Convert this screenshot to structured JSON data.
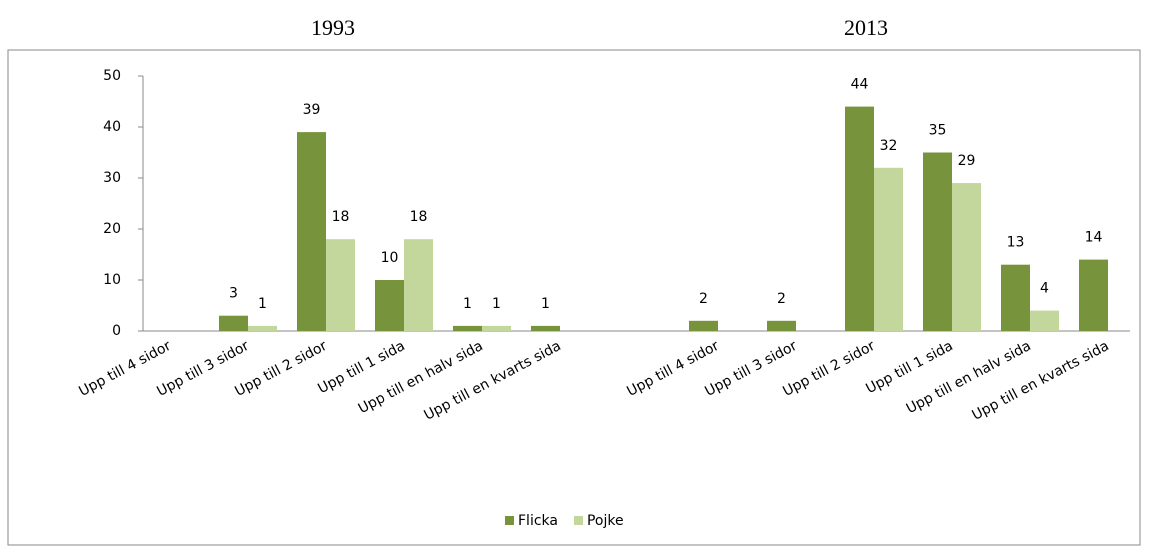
{
  "chart_data": {
    "type": "bar",
    "groups": [
      "1993",
      "2013"
    ],
    "categories": [
      "Upp till 4 sidor",
      "Upp till 3 sidor",
      "Upp till 2 sidor",
      "Upp till 1 sida",
      "Upp till en halv sida",
      "Upp till en kvarts sida",
      "Upp till 4 sidor",
      "Upp till 3 sidor",
      "Upp till 2 sidor",
      "Upp till 1 sida",
      "Upp till en halv sida",
      "Upp till en kvarts sida"
    ],
    "series": [
      {
        "name": "Flicka",
        "color": "#77933c",
        "values": [
          null,
          3,
          39,
          10,
          1,
          1,
          2,
          2,
          44,
          35,
          13,
          14
        ]
      },
      {
        "name": "Pojke",
        "color": "#c3d69b",
        "values": [
          null,
          1,
          18,
          18,
          1,
          null,
          null,
          null,
          32,
          29,
          4,
          null
        ]
      }
    ],
    "ylim": [
      0,
      50
    ],
    "yticks": [
      0,
      10,
      20,
      30,
      40,
      50
    ],
    "legend": "bottom"
  }
}
